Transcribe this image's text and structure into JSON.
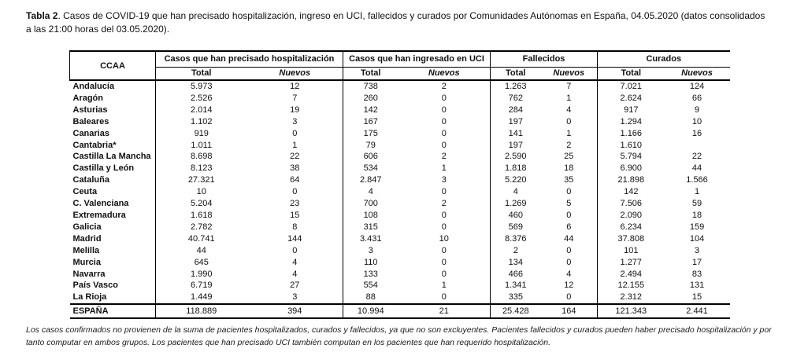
{
  "title": {
    "bold": "Tabla 2",
    "rest": ". Casos de COVID-19 que han precisado hospitalización, ingreso en UCI, fallecidos y curados por Comunidades Autónomas en España, 04.05.2020 (datos consolidados a las 21:00 horas del 03.05.2020)."
  },
  "table": {
    "ccaa_header": "CCAA",
    "groups": [
      {
        "label": "Casos que han precisado hospitalización"
      },
      {
        "label": "Casos que han ingresado en UCI"
      },
      {
        "label": "Fallecidos"
      },
      {
        "label": "Curados"
      }
    ],
    "subheaders": {
      "total": "Total",
      "nuevos": "Nuevos"
    },
    "rows": [
      {
        "ccaa": "Andalucía",
        "values": [
          "5.973",
          "12",
          "738",
          "2",
          "1.263",
          "7",
          "7.021",
          "124"
        ]
      },
      {
        "ccaa": "Aragón",
        "values": [
          "2.526",
          "7",
          "260",
          "0",
          "762",
          "1",
          "2.624",
          "66"
        ]
      },
      {
        "ccaa": "Asturias",
        "values": [
          "2.014",
          "19",
          "142",
          "0",
          "284",
          "4",
          "917",
          "9"
        ]
      },
      {
        "ccaa": "Baleares",
        "values": [
          "1.102",
          "3",
          "167",
          "0",
          "197",
          "0",
          "1.294",
          "10"
        ]
      },
      {
        "ccaa": "Canarias",
        "values": [
          "919",
          "0",
          "175",
          "0",
          "141",
          "1",
          "1.166",
          "16"
        ]
      },
      {
        "ccaa": "Cantabria*",
        "values": [
          "1.011",
          "1",
          "79",
          "0",
          "197",
          "2",
          "1.610",
          ""
        ]
      },
      {
        "ccaa": "Castilla La Mancha",
        "values": [
          "8.698",
          "22",
          "606",
          "2",
          "2.590",
          "25",
          "5.794",
          "22"
        ]
      },
      {
        "ccaa": "Castilla y León",
        "values": [
          "8.123",
          "38",
          "534",
          "1",
          "1.818",
          "18",
          "6.900",
          "44"
        ]
      },
      {
        "ccaa": "Cataluña",
        "values": [
          "27.321",
          "64",
          "2.847",
          "3",
          "5.220",
          "35",
          "21.898",
          "1.566"
        ]
      },
      {
        "ccaa": "Ceuta",
        "values": [
          "10",
          "0",
          "4",
          "0",
          "4",
          "0",
          "142",
          "1"
        ]
      },
      {
        "ccaa": "C. Valenciana",
        "values": [
          "5.204",
          "23",
          "700",
          "2",
          "1.269",
          "5",
          "7.506",
          "59"
        ]
      },
      {
        "ccaa": "Extremadura",
        "values": [
          "1.618",
          "15",
          "108",
          "0",
          "460",
          "0",
          "2.090",
          "18"
        ]
      },
      {
        "ccaa": "Galicia",
        "values": [
          "2.782",
          "8",
          "315",
          "0",
          "569",
          "6",
          "6.234",
          "159"
        ]
      },
      {
        "ccaa": "Madrid",
        "values": [
          "40.741",
          "144",
          "3.431",
          "10",
          "8.376",
          "44",
          "37.808",
          "104"
        ]
      },
      {
        "ccaa": "Melilla",
        "values": [
          "44",
          "0",
          "3",
          "0",
          "2",
          "0",
          "101",
          "3"
        ]
      },
      {
        "ccaa": "Murcia",
        "values": [
          "645",
          "4",
          "110",
          "0",
          "134",
          "0",
          "1.277",
          "17"
        ]
      },
      {
        "ccaa": "Navarra",
        "values": [
          "1.990",
          "4",
          "133",
          "0",
          "466",
          "4",
          "2.494",
          "83"
        ]
      },
      {
        "ccaa": "País Vasco",
        "values": [
          "6.719",
          "27",
          "554",
          "1",
          "1.341",
          "12",
          "12.155",
          "131"
        ]
      },
      {
        "ccaa": "La Rioja",
        "values": [
          "1.449",
          "3",
          "88",
          "0",
          "335",
          "0",
          "2.312",
          "15"
        ]
      }
    ],
    "total_row": {
      "ccaa": "ESPAÑA",
      "values": [
        "118.889",
        "394",
        "10.994",
        "21",
        "25.428",
        "164",
        "121.343",
        "2.441"
      ]
    }
  },
  "footnote": "Los casos confirmados no provienen de la suma de pacientes hospitalizados, curados y fallecidos, ya que no son excluyentes. Pacientes fallecidos y curados pueden haber precisado hospitalización y por tanto computar en ambos grupos. Los pacientes que han precisado UCI también computan en los pacientes que han requerido hospitalización."
}
